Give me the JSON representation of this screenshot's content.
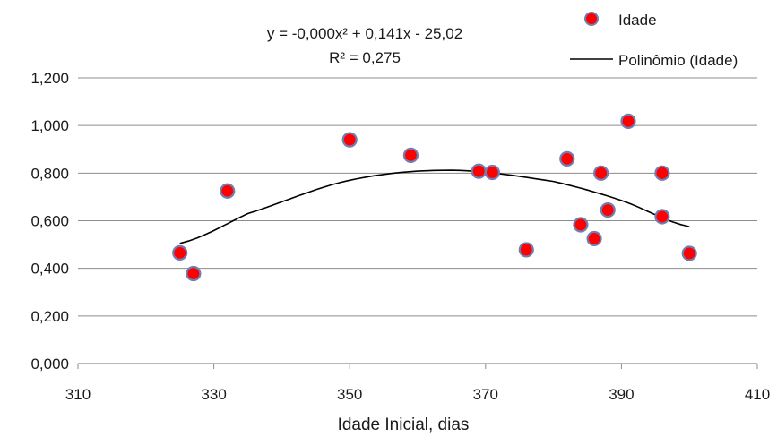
{
  "chart_data": {
    "type": "scatter",
    "xlabel": "Idade Inicial, dias",
    "ylabel": "",
    "xlim": [
      310,
      410
    ],
    "ylim": [
      0.0,
      1.2
    ],
    "xticks": [
      "310",
      "330",
      "350",
      "370",
      "390",
      "410"
    ],
    "yticks": [
      "0,000",
      "0,200",
      "0,400",
      "0,600",
      "0,800",
      "1,000",
      "1,200"
    ],
    "grid": "horizontal",
    "legend_position": "top-right",
    "series": [
      {
        "name": "Idade",
        "kind": "scatter",
        "color": "#ff0000",
        "edge_color": "#6f7fb4",
        "points": [
          {
            "x": 325,
            "y": 0.465
          },
          {
            "x": 327,
            "y": 0.378
          },
          {
            "x": 332,
            "y": 0.725
          },
          {
            "x": 350,
            "y": 0.94
          },
          {
            "x": 359,
            "y": 0.875
          },
          {
            "x": 369,
            "y": 0.808
          },
          {
            "x": 371,
            "y": 0.803
          },
          {
            "x": 376,
            "y": 0.478
          },
          {
            "x": 382,
            "y": 0.86
          },
          {
            "x": 384,
            "y": 0.583
          },
          {
            "x": 386,
            "y": 0.525
          },
          {
            "x": 387,
            "y": 0.8
          },
          {
            "x": 388,
            "y": 0.645
          },
          {
            "x": 391,
            "y": 1.018
          },
          {
            "x": 396,
            "y": 0.8
          },
          {
            "x": 396,
            "y": 0.617
          },
          {
            "x": 400,
            "y": 0.463
          }
        ]
      },
      {
        "name": "Polinômio (Idade)",
        "kind": "trendline",
        "color": "#000000",
        "x_range": [
          325,
          400
        ],
        "curve_points": [
          {
            "x": 325,
            "y": 0.505
          },
          {
            "x": 335,
            "y": 0.63
          },
          {
            "x": 350,
            "y": 0.77
          },
          {
            "x": 365,
            "y": 0.812
          },
          {
            "x": 380,
            "y": 0.765
          },
          {
            "x": 390,
            "y": 0.685
          },
          {
            "x": 400,
            "y": 0.575
          }
        ]
      }
    ],
    "trendline_equation": {
      "line1": "y = -0,000x² + 0,141x - 25,02",
      "line2": "R² = 0,275"
    }
  }
}
